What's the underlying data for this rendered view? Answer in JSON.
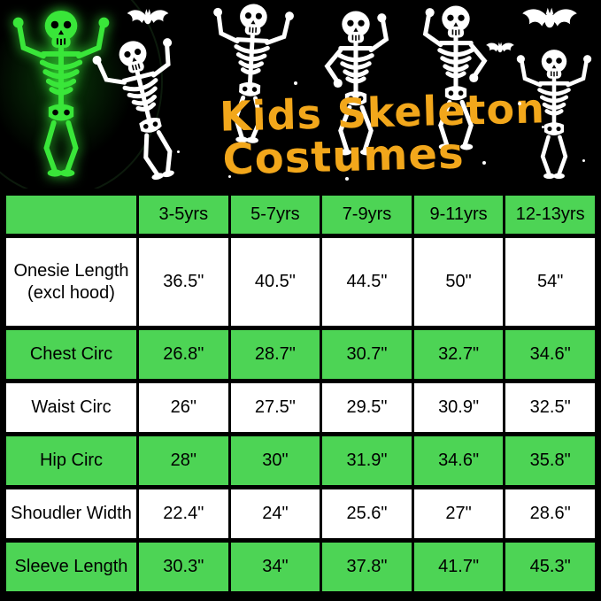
{
  "header": {
    "title_line1": "Kids Skeleton",
    "title_line2": "Costumes"
  },
  "decor": {
    "icons": [
      "glow-skeleton-icon",
      "skeleton-icon",
      "bat-icon"
    ],
    "glow_skeleton_color": "#39e639",
    "skeleton_color": "#ffffff"
  },
  "colors": {
    "background": "#000000",
    "table_green": "#4dd455",
    "row_white": "#ffffff",
    "title_orange": "#f2a71b",
    "table_text": "#000000"
  },
  "chart_data": {
    "type": "table",
    "title": "Kids Skeleton Costumes",
    "units": "inches",
    "columns": [
      "",
      "3-5yrs",
      "5-7yrs",
      "7-9yrs",
      "9-11yrs",
      "12-13yrs"
    ],
    "rows": [
      {
        "label": "Onesie Length (excl hood)",
        "values": [
          "36.5\"",
          "40.5\"",
          "44.5\"",
          "50\"",
          "54\""
        ]
      },
      {
        "label": "Chest Circ",
        "values": [
          "26.8\"",
          "28.7\"",
          "30.7\"",
          "32.7\"",
          "34.6\""
        ]
      },
      {
        "label": "Waist Circ",
        "values": [
          "26\"",
          "27.5\"",
          "29.5\"",
          "30.9\"",
          "32.5\""
        ]
      },
      {
        "label": "Hip Circ",
        "values": [
          "28\"",
          "30\"",
          "31.9\"",
          "34.6\"",
          "35.8\""
        ]
      },
      {
        "label": "Shoudler Width",
        "values": [
          "22.4\"",
          "24\"",
          "25.6\"",
          "27\"",
          "28.6\""
        ]
      },
      {
        "label": "Sleeve Length",
        "values": [
          "30.3\"",
          "34\"",
          "37.8\"",
          "41.7\"",
          "45.3\""
        ]
      }
    ],
    "header_fill": "green",
    "row_fill_pattern": [
      "white",
      "green",
      "white",
      "green",
      "white",
      "green"
    ],
    "legend_position": "none",
    "grid": true
  }
}
